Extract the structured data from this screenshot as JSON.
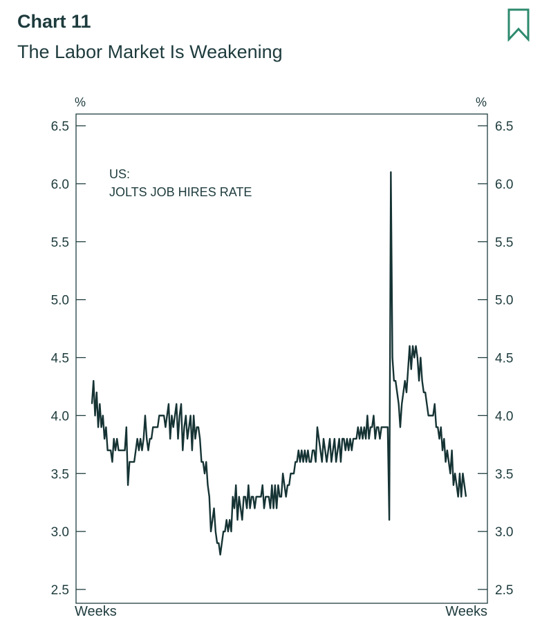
{
  "header": {
    "chart_label": "Chart 11",
    "chart_title": "The Labor Market Is Weakening",
    "bookmark_icon": "bookmark-icon"
  },
  "colors": {
    "text": "#1e3b3d",
    "line": "#163334",
    "accent": "#2d8a6e"
  },
  "chart_data": {
    "type": "line",
    "title": "The Labor Market Is Weakening",
    "annotation": [
      "US:",
      "JOLTS JOB HIRES RATE"
    ],
    "left_unit": "%",
    "right_unit": "%",
    "xlabel_left": "Weeks",
    "xlabel_right": "Weeks",
    "ylim": [
      2.5,
      6.5
    ],
    "yticks": [
      "2.5",
      "3.0",
      "3.5",
      "4.0",
      "4.5",
      "5.0",
      "5.5",
      "6.0",
      "6.5"
    ],
    "grid": false,
    "series": [
      {
        "values": [
          4.1,
          4.3,
          4.0,
          4.2,
          3.9,
          4.1,
          3.9,
          4.0,
          3.8,
          3.9,
          3.7,
          3.7,
          3.7,
          3.6,
          3.8,
          3.7,
          3.8,
          3.7,
          3.7,
          3.7,
          3.7,
          3.7,
          3.9,
          3.4,
          3.6,
          3.6,
          3.6,
          3.6,
          3.7,
          3.8,
          3.7,
          3.8,
          3.7,
          3.8,
          4.0,
          3.8,
          3.7,
          3.8,
          3.8,
          3.9,
          3.9,
          3.9,
          3.9,
          4.0,
          4.0,
          4.0,
          4.0,
          3.9,
          4.0,
          4.1,
          3.8,
          4.0,
          3.9,
          4.0,
          4.1,
          3.8,
          4.0,
          4.1,
          3.7,
          3.9,
          4.0,
          3.8,
          3.9,
          4.0,
          3.7,
          4.0,
          3.8,
          3.9,
          3.9,
          3.8,
          3.6,
          3.6,
          3.5,
          3.6,
          3.4,
          3.3,
          3.0,
          3.1,
          3.2,
          3.0,
          2.9,
          2.9,
          2.8,
          2.9,
          3.0,
          3.0,
          3.1,
          3.0,
          3.1,
          3.0,
          3.3,
          3.2,
          3.4,
          3.1,
          3.3,
          3.2,
          3.1,
          3.3,
          3.3,
          3.2,
          3.4,
          3.2,
          3.3,
          3.3,
          3.2,
          3.3,
          3.3,
          3.3,
          3.3,
          3.4,
          3.2,
          3.3,
          3.3,
          3.3,
          3.2,
          3.4,
          3.2,
          3.4,
          3.2,
          3.4,
          3.3,
          3.3,
          3.5,
          3.4,
          3.3,
          3.4,
          3.4,
          3.5,
          3.5,
          3.5,
          3.6,
          3.6,
          3.7,
          3.6,
          3.7,
          3.6,
          3.7,
          3.6,
          3.7,
          3.6,
          3.6,
          3.7,
          3.7,
          3.6,
          3.9,
          3.8,
          3.7,
          3.6,
          3.8,
          3.7,
          3.6,
          3.7,
          3.8,
          3.6,
          3.7,
          3.8,
          3.6,
          3.7,
          3.8,
          3.6,
          3.8,
          3.8,
          3.7,
          3.8,
          3.7,
          3.8,
          3.7,
          3.8,
          3.8,
          3.8,
          3.9,
          3.8,
          3.9,
          3.8,
          3.9,
          3.8,
          4.0,
          3.8,
          3.9,
          3.9,
          4.0,
          3.8,
          3.9,
          3.9,
          3.8,
          3.9,
          3.9,
          3.9,
          3.9,
          3.9,
          3.1,
          6.1,
          4.5,
          4.3,
          4.3,
          4.2,
          4.1,
          3.9,
          4.1,
          4.2,
          4.3,
          4.2,
          4.4,
          4.6,
          4.4,
          4.6,
          4.5,
          4.6,
          4.5,
          4.3,
          4.5,
          4.3,
          4.2,
          4.2,
          4.1,
          4.0,
          4.0,
          4.0,
          4.0,
          4.1,
          3.9,
          3.9,
          3.8,
          3.9,
          3.7,
          3.8,
          3.6,
          3.7,
          3.6,
          3.5,
          3.7,
          3.4,
          3.5,
          3.4,
          3.3,
          3.5,
          3.3,
          3.5,
          3.4,
          3.3
        ]
      }
    ]
  }
}
